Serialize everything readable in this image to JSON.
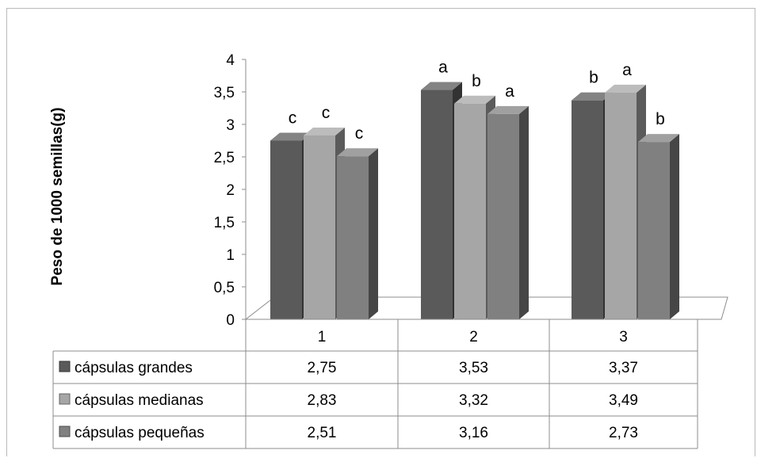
{
  "chart_data": {
    "type": "bar",
    "style": "3d-clustered-column-with-data-table",
    "title": "",
    "ylabel": "Peso de 1000 semillas(g)",
    "xlabel": "",
    "ylim": [
      0,
      4
    ],
    "yticks": [
      "0",
      "0,5",
      "1",
      "1,5",
      "2",
      "2,5",
      "3",
      "3,5",
      "4"
    ],
    "categories": [
      "1",
      "2",
      "3"
    ],
    "series": [
      {
        "name": "cápsulas grandes",
        "color": "#5a5a5a",
        "values": [
          2.75,
          3.53,
          3.37
        ],
        "labels": [
          "2,75",
          "3,53",
          "3,37"
        ],
        "significance": [
          "c",
          "a",
          "b"
        ]
      },
      {
        "name": "cápsulas medianas",
        "color": "#a6a6a6",
        "values": [
          2.83,
          3.32,
          3.49
        ],
        "labels": [
          "2,83",
          "3,32",
          "3,49"
        ],
        "significance": [
          "c",
          "b",
          "a"
        ]
      },
      {
        "name": "cápsulas pequeñas",
        "color": "#808080",
        "values": [
          2.51,
          3.16,
          2.73
        ],
        "labels": [
          "2,51",
          "3,16",
          "2,73"
        ],
        "significance": [
          "c",
          "a",
          "b"
        ]
      }
    ],
    "grid": false,
    "legend": "data-table"
  }
}
